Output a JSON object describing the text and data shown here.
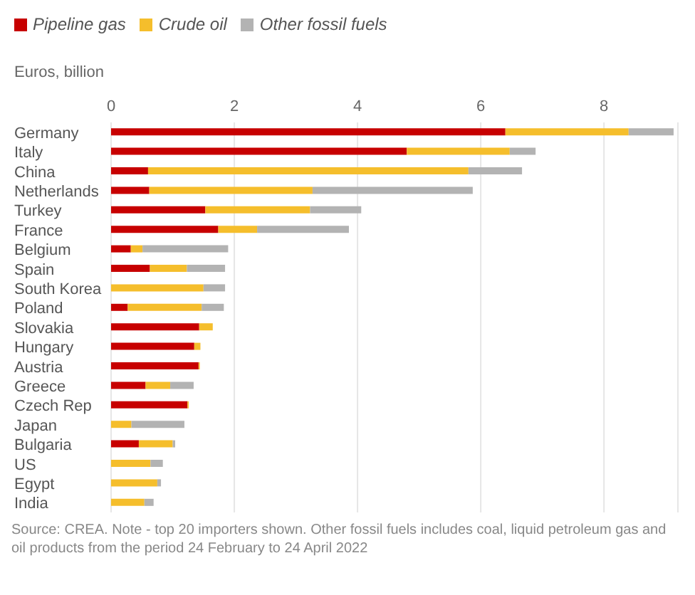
{
  "chart_data": {
    "type": "bar",
    "orientation": "horizontal",
    "stacked": true,
    "xlabel": "Euros, billion",
    "categories": [
      "Germany",
      "Italy",
      "China",
      "Netherlands",
      "Turkey",
      "France",
      "Belgium",
      "Spain",
      "South Korea",
      "Poland",
      "Slovakia",
      "Hungary",
      "Austria",
      "Greece",
      "Czech Rep",
      "Japan",
      "Bulgaria",
      "US",
      "Egypt",
      "India"
    ],
    "series": [
      {
        "name": "Pipeline gas",
        "color": "#c70000",
        "values": [
          6.4,
          4.8,
          0.6,
          0.62,
          1.53,
          1.74,
          0.32,
          0.63,
          0,
          0.27,
          1.43,
          1.35,
          1.42,
          0.56,
          1.24,
          0,
          0.45,
          0,
          0,
          0
        ]
      },
      {
        "name": "Crude oil",
        "color": "#f5be2c",
        "values": [
          2.0,
          1.67,
          5.2,
          2.65,
          1.7,
          0.63,
          0.19,
          0.6,
          1.5,
          1.2,
          0.22,
          0.1,
          0.02,
          0.4,
          0.02,
          0.33,
          0.55,
          0.64,
          0.75,
          0.54
        ]
      },
      {
        "name": "Other fossil fuels",
        "color": "#b3b3b3",
        "values": [
          0.73,
          0.42,
          0.87,
          2.6,
          0.83,
          1.49,
          1.39,
          0.62,
          0.35,
          0.36,
          0,
          0,
          0,
          0.38,
          0,
          0.86,
          0.04,
          0.2,
          0.06,
          0.15
        ]
      }
    ],
    "xlim": [
      0,
      9.2
    ],
    "xticks": [
      0,
      2,
      4,
      6,
      8
    ],
    "grid": "x",
    "legend": "top left",
    "annotations": [
      "Source: CREA. Note - top 20 importers shown. Other fossil fuels includes coal, liquid petroleum gas and oil products from the period 24 February to 24 April 2022"
    ]
  }
}
